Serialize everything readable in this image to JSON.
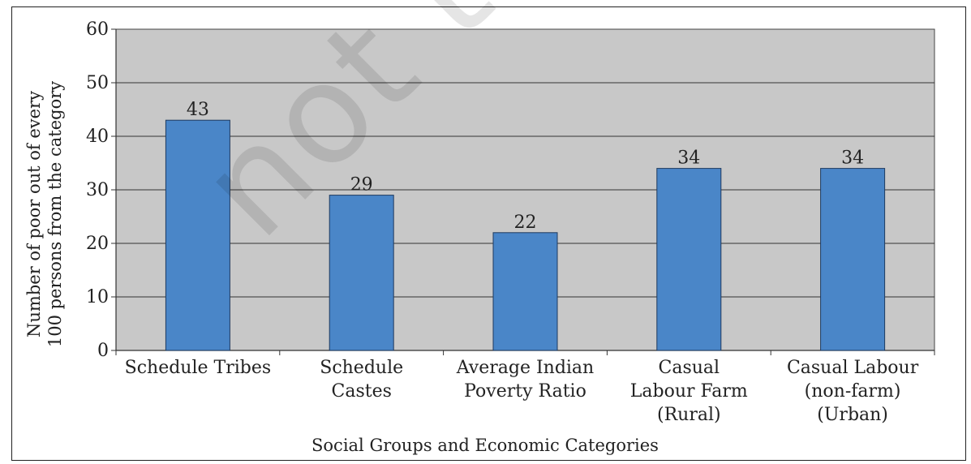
{
  "chart_data": {
    "type": "bar",
    "categories": [
      [
        "Schedule Tribes"
      ],
      [
        "Schedule",
        "Castes"
      ],
      [
        "Average Indian",
        "Poverty Ratio"
      ],
      [
        "Casual",
        "Labour Farm",
        "(Rural)"
      ],
      [
        "Casual Labour",
        "(non-farm)",
        "(Urban)"
      ]
    ],
    "values": [
      43,
      29,
      22,
      34,
      34
    ],
    "data_labels": [
      "43",
      "29",
      "22",
      "34",
      "34"
    ],
    "xlabel": "Social Groups and Economic Categories",
    "ylabel": [
      "Number of poor out of every",
      "100 persons  from the category"
    ],
    "ylim": [
      0,
      60
    ],
    "yticks": [
      "0",
      "10",
      "20",
      "30",
      "40",
      "50",
      "60"
    ],
    "grid": true,
    "colors": {
      "bar": "#4a86c8",
      "bar_edge": "#1e3a5f",
      "plot_bg": "#c8c8c8",
      "grid": "#333333"
    }
  },
  "watermark": "not to be"
}
